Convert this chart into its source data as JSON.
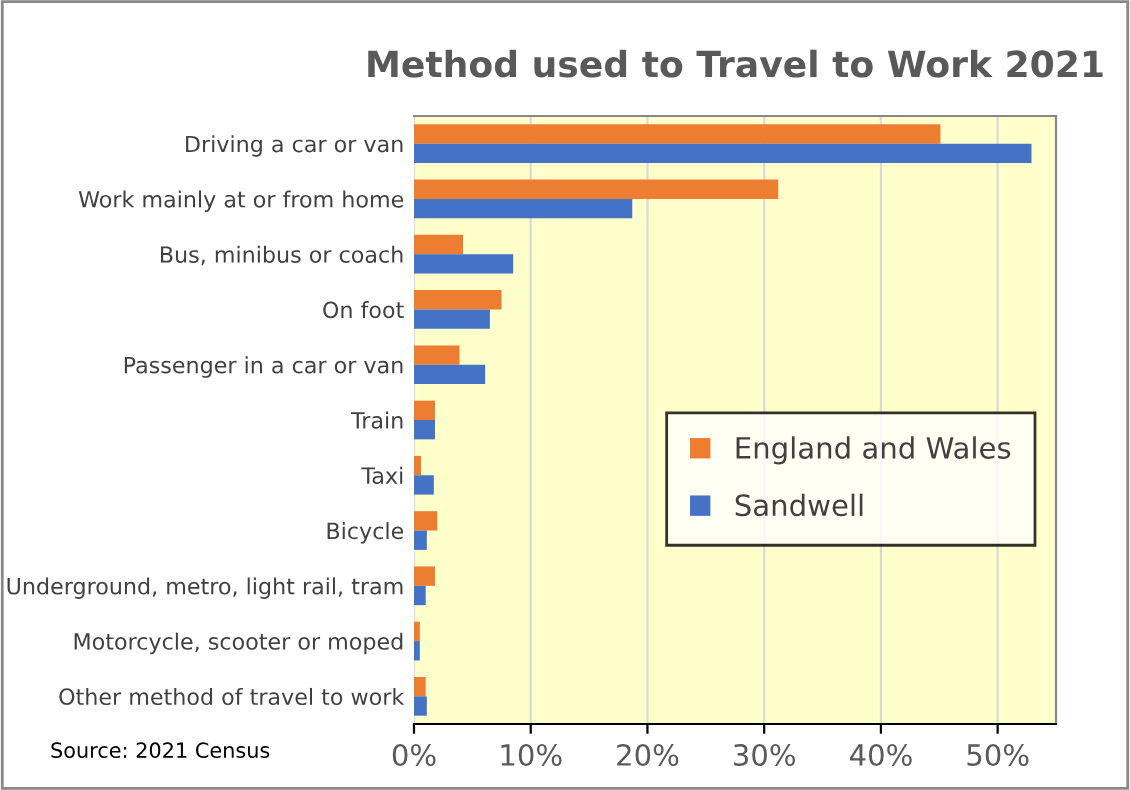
{
  "chart_data": {
    "type": "bar",
    "orientation": "horizontal",
    "title": "Method used to Travel to Work 2021",
    "categories": [
      "Driving a car or van",
      "Work mainly at or from home",
      "Bus, minibus or coach",
      "On foot",
      "Passenger in a car or van",
      "Train",
      "Taxi",
      "Bicycle",
      "Underground, metro, light rail, tram",
      "Motorcycle, scooter or moped",
      "Other method of travel to work"
    ],
    "series": [
      {
        "name": "England and Wales",
        "color": "#ed7d31",
        "values": [
          45.1,
          31.2,
          4.2,
          7.5,
          3.9,
          1.8,
          0.6,
          2.0,
          1.8,
          0.5,
          1.0
        ]
      },
      {
        "name": "Sandwell",
        "color": "#4472c4",
        "values": [
          52.9,
          18.7,
          8.5,
          6.5,
          6.1,
          1.8,
          1.7,
          1.1,
          1.0,
          0.5,
          1.1
        ]
      }
    ],
    "xlim": [
      0,
      55
    ],
    "xticks": [
      {
        "value": 0,
        "label": "0%"
      },
      {
        "value": 10,
        "label": "10%"
      },
      {
        "value": 20,
        "label": "20%"
      },
      {
        "value": 30,
        "label": "30%"
      },
      {
        "value": 40,
        "label": "40%"
      },
      {
        "value": 50,
        "label": "50%"
      }
    ],
    "grid": "x",
    "legend": "bottom right",
    "annotations": [
      "Source: 2021 Census"
    ]
  }
}
